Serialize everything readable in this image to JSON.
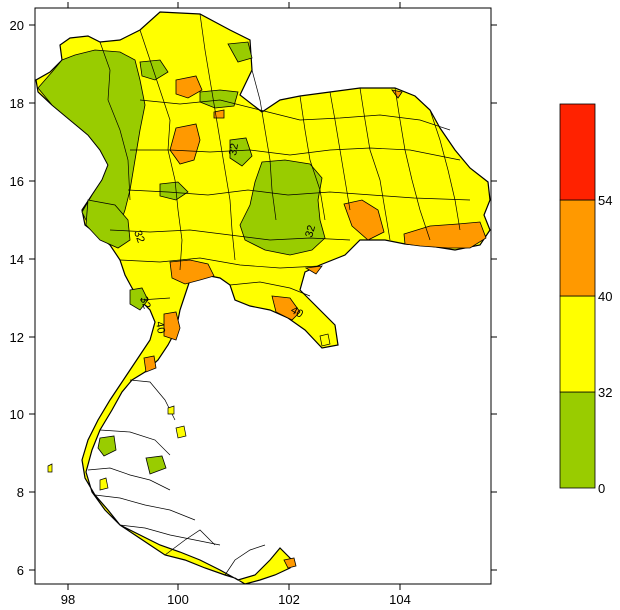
{
  "map": {
    "x_ticks": [
      "98",
      "100",
      "102",
      "104"
    ],
    "y_ticks": [
      "6",
      "8",
      "10",
      "12",
      "14",
      "16",
      "18",
      "20"
    ],
    "contour_labels": [
      "32",
      "32",
      "32",
      "32",
      "40",
      "40"
    ]
  },
  "legend": {
    "bins": [
      {
        "from": "0",
        "to": "32",
        "color": "#99cc00"
      },
      {
        "from": "32",
        "to": "40",
        "color": "#ffff00"
      },
      {
        "from": "40",
        "to": "54",
        "color": "#ff9900"
      },
      {
        "from": "54",
        "to": "",
        "color": "#ff2200"
      }
    ],
    "labels": [
      "0",
      "32",
      "40",
      "54"
    ]
  },
  "colors": {
    "land": "#ffff00",
    "low": "#99cc00",
    "mid_high": "#ff9900",
    "high": "#ff2200",
    "border": "#000000"
  }
}
